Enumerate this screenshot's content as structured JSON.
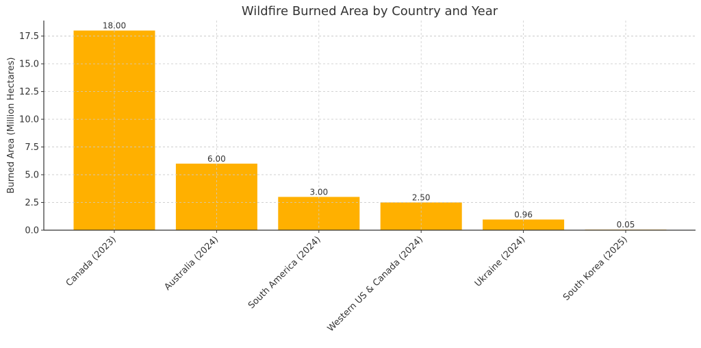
{
  "chart_data": {
    "type": "bar",
    "title": "Wildfire Burned Area by Country and Year",
    "xlabel": "",
    "ylabel": "Burned Area (Million Hectares)",
    "categories": [
      "Canada (2023)",
      "Australia (2024)",
      "South America (2024)",
      "Western US & Canada (2024)",
      "Ukraine (2024)",
      "South Korea (2025)"
    ],
    "values": [
      18.0,
      6.0,
      3.0,
      2.5,
      0.96,
      0.05
    ],
    "value_labels": [
      "18.00",
      "6.00",
      "3.00",
      "2.50",
      "0.96",
      "0.05"
    ],
    "ylim": [
      0,
      18.9
    ],
    "y_ticks": [
      0,
      2.5,
      5,
      7.5,
      10,
      12.5,
      15,
      17.5
    ],
    "y_tick_labels": [
      "0.0",
      "2.5",
      "5.0",
      "7.5",
      "10.0",
      "12.5",
      "15.0",
      "17.5"
    ],
    "grid": true,
    "bar_color": "#FFB000"
  }
}
